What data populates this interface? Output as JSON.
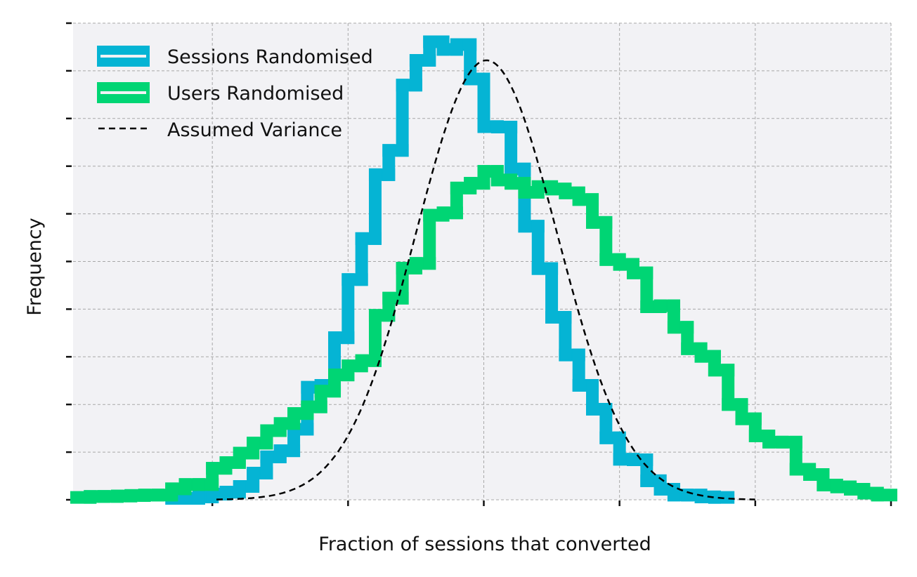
{
  "chart_data": {
    "type": "histogram",
    "title": "",
    "xlabel": "Fraction of sessions that converted",
    "ylabel": "Frequency",
    "x_tick_labels_shown": false,
    "y_tick_labels_shown": false,
    "xlim": [
      0,
      60
    ],
    "ylim": [
      0,
      100
    ],
    "x_ticks": [
      10,
      20,
      30,
      40,
      50,
      60
    ],
    "y_ticks": [
      0,
      10,
      20,
      30,
      40,
      50,
      60,
      70,
      80,
      90,
      100
    ],
    "grid": true,
    "legend_position": "top-left",
    "background": "#f2f2f5",
    "series": [
      {
        "name": "Sessions Randomised",
        "kind": "step",
        "color": "#05b4d4",
        "bin_width": 1,
        "bin_start": 7,
        "values": [
          0.3,
          0.3,
          0.6,
          1.2,
          1.6,
          2.8,
          5.6,
          9.0,
          10.3,
          14.8,
          23.6,
          24.0,
          34.0,
          46.2,
          54.8,
          68.2,
          73.3,
          87.0,
          92.2,
          96.1,
          94.5,
          95.5,
          88.3,
          78.3,
          78.2,
          69.4,
          57.4,
          48.5,
          38.3,
          30.4,
          24.0,
          19.0,
          13.0,
          8.5,
          8.4,
          4.0,
          2.2,
          1.0,
          1.0,
          0.6,
          0.5
        ]
      },
      {
        "name": "Users Randomised",
        "kind": "step",
        "color": "#00d574",
        "bin_width": 1,
        "bin_start": 0,
        "values": [
          0.5,
          0.7,
          0.7,
          0.8,
          0.9,
          1.0,
          1.0,
          2.3,
          3.2,
          3.2,
          6.6,
          7.8,
          9.8,
          11.9,
          14.5,
          16.0,
          18.1,
          19.5,
          22.8,
          26.2,
          28.1,
          29.2,
          38.7,
          42.3,
          48.6,
          49.6,
          59.7,
          60.2,
          65.4,
          66.4,
          68.9,
          67.1,
          66.4,
          64.5,
          65.7,
          65.2,
          64.4,
          63.0,
          58.2,
          50.4,
          49.4,
          47.6,
          40.5,
          40.7,
          36.2,
          31.7,
          30.1,
          27.2,
          20.0,
          17.0,
          13.4,
          12.1,
          12.1,
          6.4,
          5.3,
          3.1,
          2.7,
          2.2,
          1.4,
          1.0
        ]
      },
      {
        "name": "Assumed Variance",
        "kind": "line",
        "style": "dashed",
        "color": "#000000",
        "distribution": "normal",
        "mean": 30.2,
        "sd": 5.2,
        "peak": 92.2,
        "x_range": [
          10.3,
          50
        ]
      }
    ]
  }
}
